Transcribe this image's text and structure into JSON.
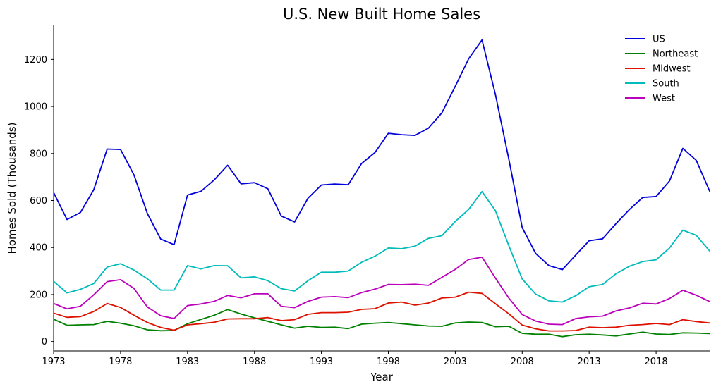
{
  "chart_data": {
    "type": "line",
    "title": "U.S. New Built Home Sales",
    "xlabel": "Year",
    "ylabel": "Homes Sold (Thousands)",
    "xlim": [
      1973,
      2022
    ],
    "ylim": [
      -40,
      1345
    ],
    "x_ticks": [
      1973,
      1978,
      1983,
      1988,
      1993,
      1998,
      2003,
      2008,
      2013,
      2018
    ],
    "y_ticks": [
      0,
      200,
      400,
      600,
      800,
      1000,
      1200
    ],
    "grid": false,
    "legend_position": "top-right",
    "x": [
      1973,
      1974,
      1975,
      1976,
      1977,
      1978,
      1979,
      1980,
      1981,
      1982,
      1983,
      1984,
      1985,
      1986,
      1987,
      1988,
      1989,
      1990,
      1991,
      1992,
      1993,
      1994,
      1995,
      1996,
      1997,
      1998,
      1999,
      2000,
      2001,
      2002,
      2003,
      2004,
      2005,
      2006,
      2007,
      2008,
      2009,
      2010,
      2011,
      2012,
      2013,
      2014,
      2015,
      2016,
      2017,
      2018,
      2019,
      2020,
      2021,
      2022
    ],
    "series": [
      {
        "name": "US",
        "color": "#0000dd",
        "values": [
          634,
          519,
          549,
          646,
          819,
          817,
          709,
          545,
          436,
          412,
          623,
          639,
          688,
          750,
          671,
          676,
          650,
          534,
          509,
          610,
          666,
          670,
          667,
          757,
          804,
          886,
          880,
          877,
          908,
          973,
          1086,
          1203,
          1283,
          1051,
          776,
          485,
          375,
          323,
          306,
          368,
          429,
          437,
          501,
          561,
          613,
          617,
          683,
          822,
          771,
          640
        ]
      },
      {
        "name": "Northeast",
        "color": "#008000",
        "values": [
          95,
          69,
          71,
          72,
          86,
          78,
          67,
          50,
          46,
          47,
          76,
          94,
          112,
          136,
          117,
          101,
          86,
          71,
          57,
          65,
          60,
          61,
          55,
          74,
          78,
          81,
          76,
          71,
          66,
          65,
          79,
          83,
          81,
          63,
          65,
          35,
          31,
          31,
          21,
          29,
          31,
          28,
          24,
          32,
          40,
          32,
          30,
          37,
          36,
          34
        ]
      },
      {
        "name": "Midwest",
        "color": "#dd1100",
        "values": [
          121,
          103,
          106,
          128,
          162,
          145,
          112,
          81,
          60,
          48,
          71,
          76,
          82,
          96,
          97,
          97,
          102,
          89,
          93,
          116,
          123,
          123,
          125,
          137,
          140,
          164,
          168,
          155,
          164,
          185,
          189,
          210,
          205,
          161,
          118,
          70,
          54,
          45,
          45,
          47,
          61,
          59,
          61,
          69,
          72,
          77,
          72,
          93,
          85,
          79
        ]
      },
      {
        "name": "South",
        "color": "#00bbbb",
        "values": [
          256,
          207,
          222,
          247,
          317,
          331,
          304,
          267,
          219,
          219,
          323,
          309,
          323,
          322,
          271,
          275,
          259,
          225,
          215,
          259,
          295,
          295,
          300,
          337,
          363,
          398,
          395,
          406,
          439,
          450,
          511,
          562,
          638,
          557,
          408,
          266,
          202,
          173,
          168,
          195,
          233,
          243,
          288,
          320,
          340,
          348,
          398,
          474,
          452,
          385
        ]
      },
      {
        "name": "West",
        "color": "#bb00bb",
        "values": [
          162,
          139,
          150,
          199,
          255,
          263,
          226,
          147,
          110,
          98,
          153,
          160,
          171,
          196,
          186,
          203,
          203,
          150,
          144,
          171,
          189,
          191,
          187,
          208,
          223,
          243,
          242,
          244,
          239,
          273,
          307,
          349,
          359,
          270,
          185,
          115,
          87,
          74,
          72,
          98,
          105,
          108,
          130,
          143,
          163,
          160,
          183,
          218,
          197,
          170
        ]
      }
    ]
  }
}
